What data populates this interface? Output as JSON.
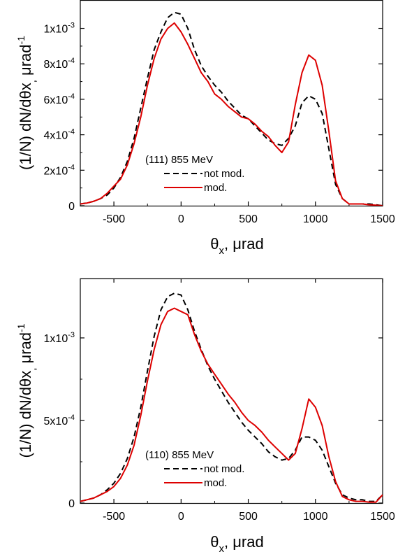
{
  "colors": {
    "not_mod": "#000000",
    "mod": "#dd0000"
  },
  "chart_data": [
    {
      "type": "line",
      "panel": "top",
      "title": "",
      "xlabel": "θx, μrad",
      "ylabel": "(1/N) dN/dθx, μrad-1",
      "xlim": [
        -750,
        1500
      ],
      "ylim": [
        0,
        0.00116
      ],
      "grid": false,
      "legend_title": "(111) 855 MeV",
      "legend_placement": "lower-center",
      "x_ticks": [
        {
          "value": -500,
          "label": "-500"
        },
        {
          "value": 0,
          "label": "0"
        },
        {
          "value": 500,
          "label": "500"
        },
        {
          "value": 1000,
          "label": "1000"
        },
        {
          "value": 1500,
          "label": "1500"
        }
      ],
      "y_ticks": [
        {
          "value": 0,
          "label": "0"
        },
        {
          "value": 0.0002,
          "label": "2x10",
          "exp": "-4"
        },
        {
          "value": 0.0004,
          "label": "4x10",
          "exp": "-4"
        },
        {
          "value": 0.0006,
          "label": "6x10",
          "exp": "-4"
        },
        {
          "value": 0.0008,
          "label": "8x10",
          "exp": "-4"
        },
        {
          "value": 0.001,
          "label": "1x10",
          "exp": "-3"
        }
      ],
      "series": [
        {
          "name": "not mod.",
          "style": "dashed",
          "x": [
            -750,
            -700,
            -650,
            -600,
            -550,
            -500,
            -450,
            -400,
            -350,
            -300,
            -250,
            -200,
            -150,
            -100,
            -50,
            0,
            50,
            100,
            150,
            200,
            250,
            300,
            350,
            400,
            450,
            500,
            550,
            600,
            650,
            700,
            750,
            800,
            850,
            900,
            950,
            1000,
            1050,
            1100,
            1150,
            1200,
            1250,
            1300,
            1350,
            1400,
            1450,
            1500
          ],
          "y": [
            1e-05,
            1.5e-05,
            2.5e-05,
            4e-05,
            6e-05,
            0.0001,
            0.00016,
            0.00025,
            0.00038,
            0.00055,
            0.00072,
            0.00088,
            0.00098,
            0.00106,
            0.00109,
            0.00108,
            0.001,
            0.00088,
            0.00079,
            0.00073,
            0.00068,
            0.00064,
            0.00059,
            0.00055,
            0.00051,
            0.00049,
            0.00045,
            0.00041,
            0.00037,
            0.00035,
            0.00034,
            0.00038,
            0.00045,
            0.00058,
            0.00062,
            0.0006,
            0.00052,
            0.00032,
            0.00012,
            4e-05,
            1e-05,
            1e-05,
            1e-05,
            1e-05,
            5e-06,
            0
          ]
        },
        {
          "name": "mod.",
          "style": "solid",
          "x": [
            -750,
            -700,
            -650,
            -600,
            -550,
            -500,
            -450,
            -400,
            -350,
            -300,
            -250,
            -200,
            -150,
            -100,
            -50,
            0,
            50,
            100,
            150,
            200,
            250,
            300,
            350,
            400,
            450,
            500,
            550,
            600,
            650,
            700,
            750,
            800,
            850,
            900,
            950,
            1000,
            1050,
            1100,
            1150,
            1200,
            1250,
            1300,
            1350,
            1400,
            1450,
            1500
          ],
          "y": [
            1e-05,
            1.5e-05,
            2.5e-05,
            4e-05,
            7e-05,
            0.00011,
            0.00015,
            0.00023,
            0.00035,
            0.0005,
            0.00068,
            0.00083,
            0.00094,
            0.001,
            0.00103,
            0.00098,
            0.00091,
            0.00083,
            0.00075,
            0.0007,
            0.00063,
            0.0006,
            0.00056,
            0.00053,
            0.0005,
            0.00049,
            0.00046,
            0.00042,
            0.00039,
            0.00034,
            0.0003,
            0.00036,
            0.00057,
            0.00075,
            0.00085,
            0.00082,
            0.00068,
            0.00042,
            0.00014,
            4e-05,
            1e-05,
            1e-05,
            1e-05,
            5e-06,
            3e-06,
            0
          ]
        }
      ]
    },
    {
      "type": "line",
      "panel": "bottom",
      "title": "",
      "xlabel": "θx, μrad",
      "ylabel": "(1/N) dN/dθx, μrad-1",
      "xlim": [
        -750,
        1500
      ],
      "ylim": [
        0,
        0.00136
      ],
      "grid": false,
      "legend_title": "(110) 855 MeV",
      "legend_placement": "lower-center",
      "x_ticks": [
        {
          "value": -500,
          "label": "-500"
        },
        {
          "value": 0,
          "label": "0"
        },
        {
          "value": 500,
          "label": "500"
        },
        {
          "value": 1000,
          "label": "1000"
        },
        {
          "value": 1500,
          "label": "1500"
        }
      ],
      "y_ticks": [
        {
          "value": 0,
          "label": "0"
        },
        {
          "value": 0.0005,
          "label": "5x10",
          "exp": "-4"
        },
        {
          "value": 0.001,
          "label": "1x10",
          "exp": "-3"
        }
      ],
      "series": [
        {
          "name": "not mod.",
          "style": "dashed",
          "x": [
            -750,
            -700,
            -650,
            -600,
            -550,
            -500,
            -450,
            -400,
            -350,
            -300,
            -250,
            -200,
            -150,
            -100,
            -50,
            0,
            50,
            100,
            150,
            200,
            250,
            300,
            350,
            400,
            450,
            500,
            550,
            600,
            650,
            700,
            750,
            800,
            850,
            900,
            950,
            1000,
            1050,
            1100,
            1150,
            1200,
            1250,
            1300,
            1350,
            1400,
            1450,
            1500
          ],
          "y": [
            1e-05,
            2e-05,
            3e-05,
            5e-05,
            8e-05,
            0.00012,
            0.00018,
            0.00027,
            0.0004,
            0.00058,
            0.0008,
            0.00101,
            0.00117,
            0.00125,
            0.00127,
            0.00126,
            0.00117,
            0.00104,
            0.00093,
            0.00083,
            0.00075,
            0.00068,
            0.00061,
            0.00055,
            0.00049,
            0.00044,
            0.0004,
            0.00036,
            0.00031,
            0.00028,
            0.00026,
            0.00027,
            0.00032,
            0.0004,
            0.0004,
            0.00038,
            0.00032,
            0.00022,
            0.00012,
            5e-05,
            3e-05,
            2e-05,
            2e-05,
            1e-05,
            1e-05,
            5e-05
          ]
        },
        {
          "name": "mod.",
          "style": "solid",
          "x": [
            -750,
            -700,
            -650,
            -600,
            -550,
            -500,
            -450,
            -400,
            -350,
            -300,
            -250,
            -200,
            -150,
            -100,
            -50,
            0,
            50,
            100,
            150,
            200,
            250,
            300,
            350,
            400,
            450,
            500,
            550,
            600,
            650,
            700,
            750,
            800,
            850,
            900,
            950,
            1000,
            1050,
            1100,
            1150,
            1200,
            1250,
            1300,
            1350,
            1400,
            1450,
            1500
          ],
          "y": [
            1e-05,
            2e-05,
            3e-05,
            5e-05,
            7e-05,
            0.0001,
            0.00015,
            0.00023,
            0.00035,
            0.00053,
            0.00074,
            0.00093,
            0.00108,
            0.00116,
            0.00118,
            0.00116,
            0.00114,
            0.00102,
            0.00092,
            0.00084,
            0.00078,
            0.00072,
            0.00066,
            0.00061,
            0.00055,
            0.0005,
            0.00047,
            0.00043,
            0.00038,
            0.00034,
            0.0003,
            0.00026,
            0.0003,
            0.00045,
            0.00063,
            0.00058,
            0.00047,
            0.00028,
            0.00013,
            4e-05,
            2e-05,
            1e-05,
            1e-05,
            5e-06,
            5e-06,
            5e-05
          ]
        }
      ]
    }
  ]
}
